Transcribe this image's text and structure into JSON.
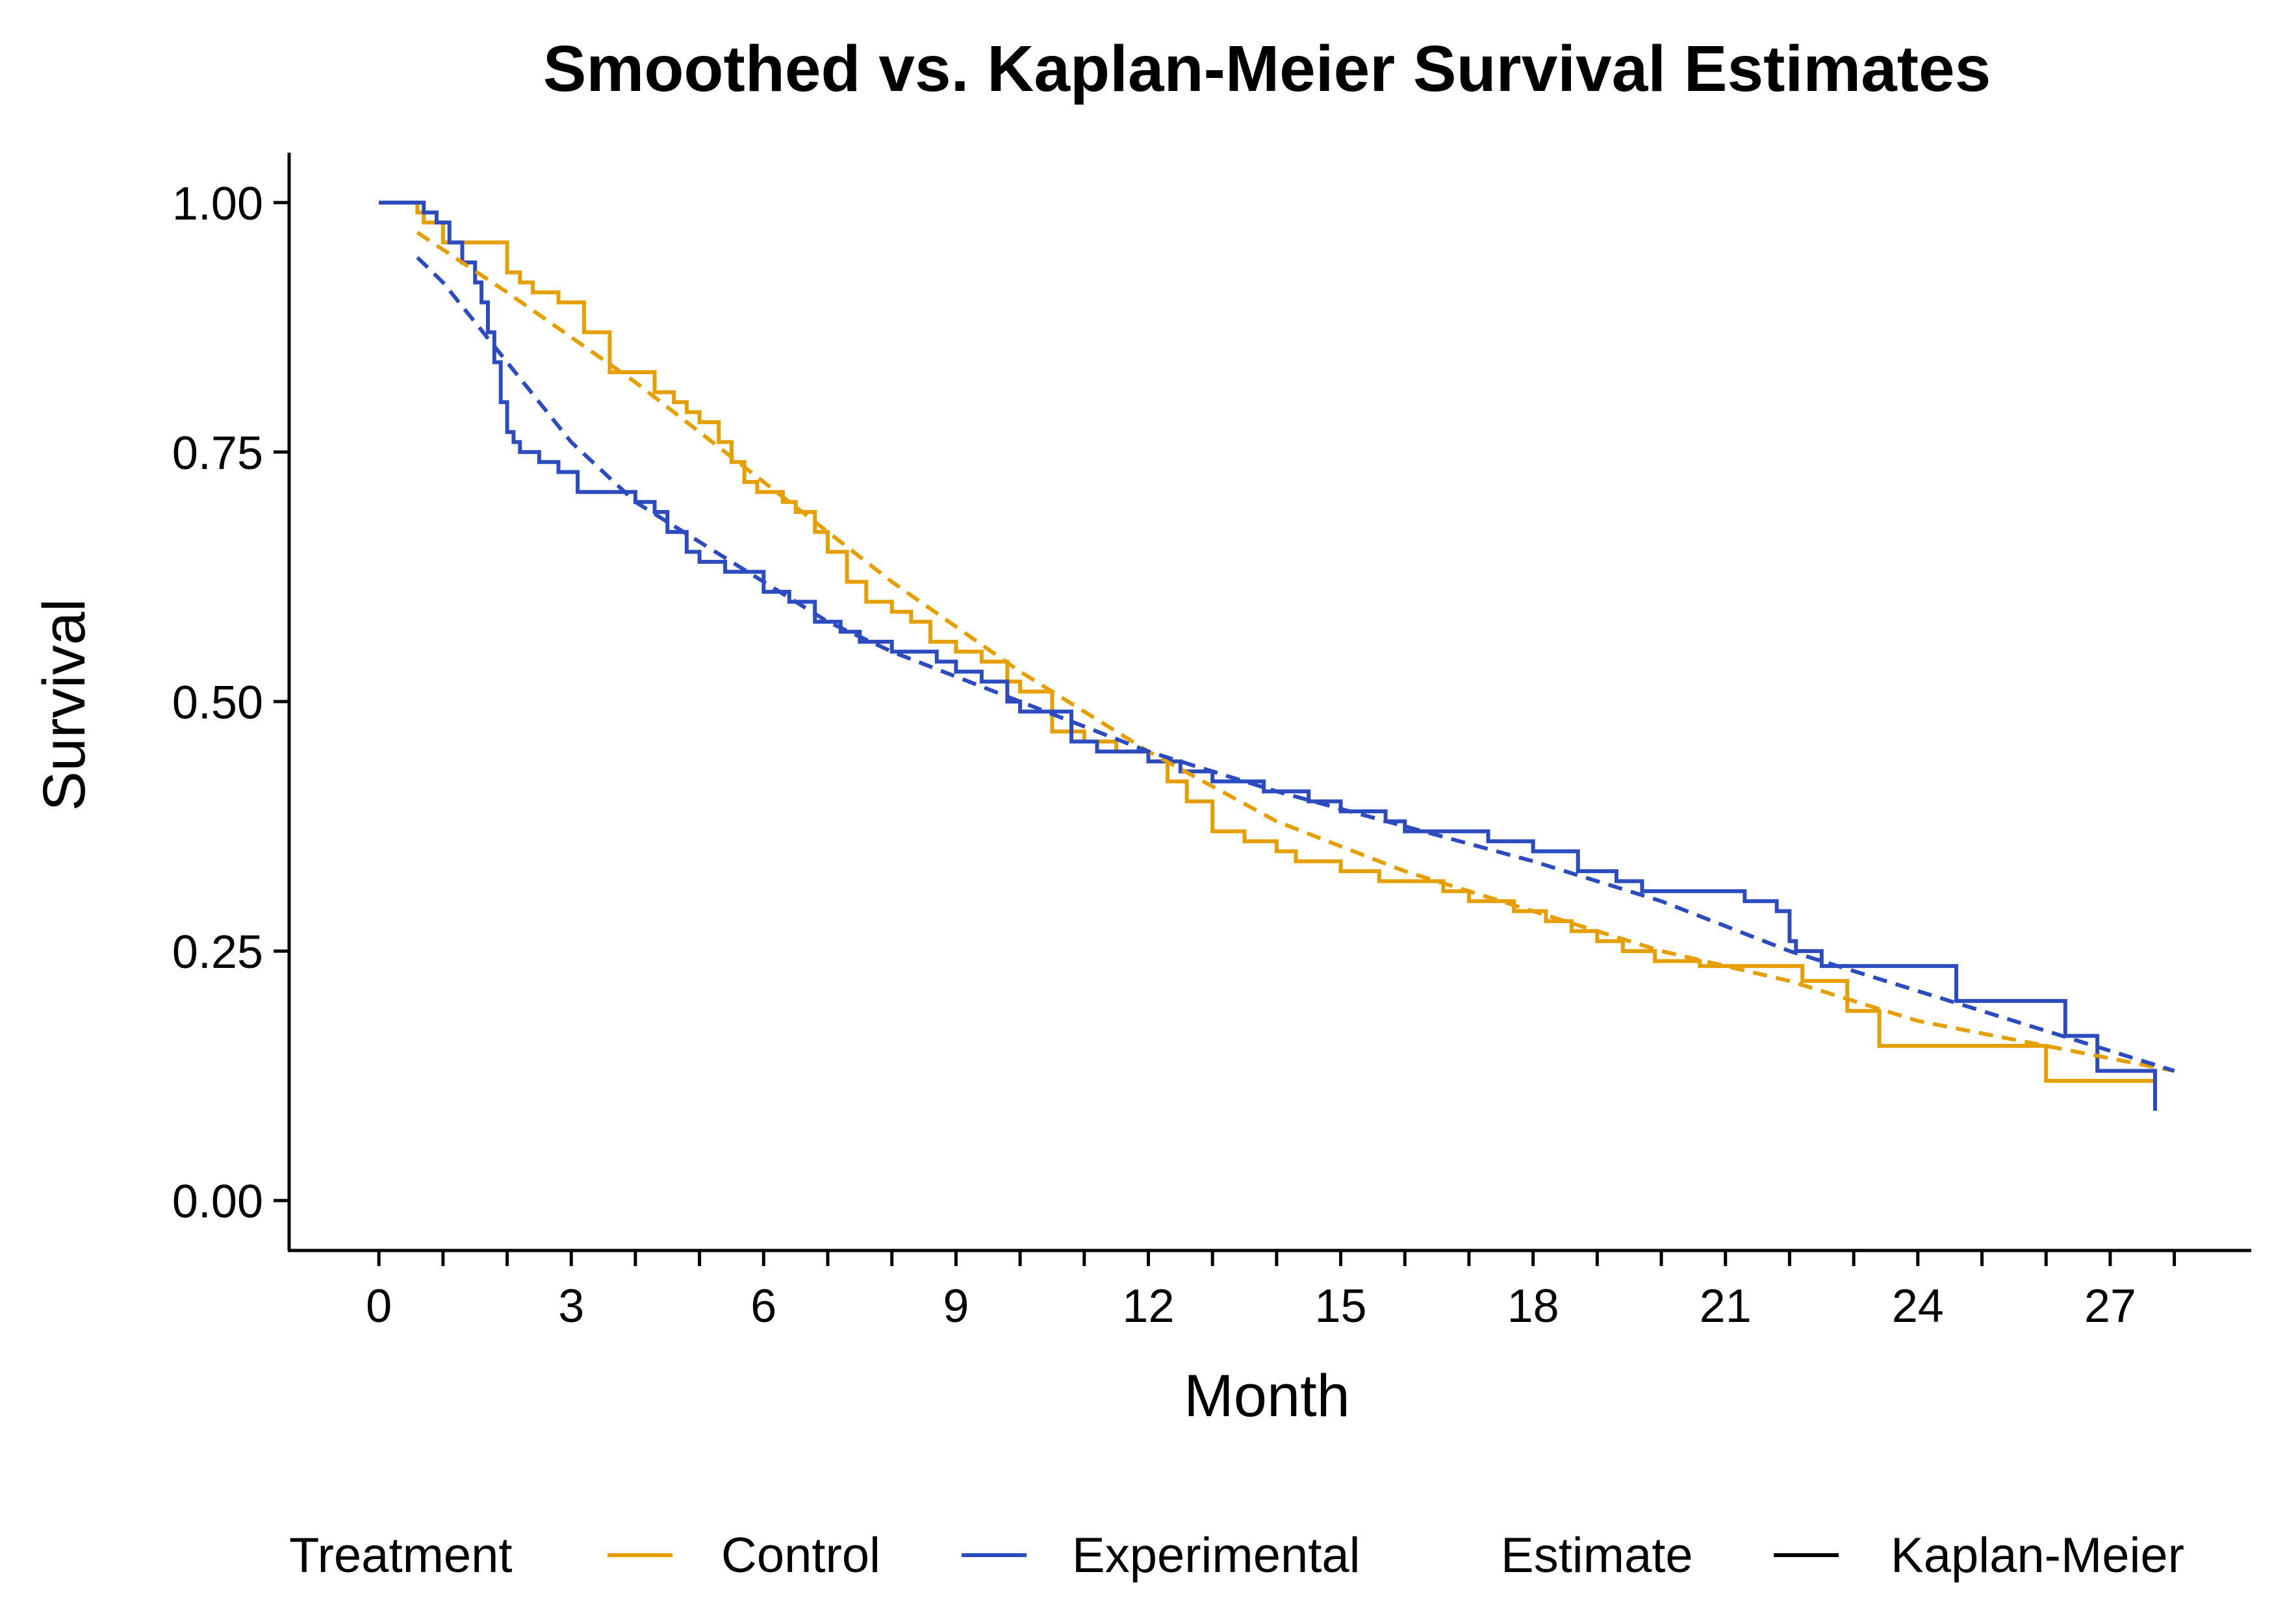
{
  "chart_data": {
    "type": "line",
    "title": "Smoothed vs. Kaplan-Meier Survival Estimates",
    "xlabel": "Month",
    "ylabel": "Survival",
    "xlim": [
      -1.4,
      29.2
    ],
    "ylim": [
      -0.05,
      1.05
    ],
    "x_ticks": [
      0,
      3,
      6,
      9,
      12,
      15,
      18,
      21,
      24,
      27
    ],
    "y_ticks": [
      0.0,
      0.25,
      0.5,
      0.75,
      1.0
    ],
    "y_tick_labels": [
      "0.00",
      "0.25",
      "0.50",
      "0.75",
      "1.00"
    ],
    "legend": {
      "position": "bottom",
      "treatment_title": "Treatment",
      "estimate_title": "Estimate",
      "treatment_items": [
        "Control",
        "Experimental"
      ],
      "estimate_items": [
        "Kaplan-Meier"
      ]
    },
    "colors": {
      "Control": "#E69F00",
      "Experimental": "#2B4BBF",
      "axis": "#000000"
    },
    "series": [
      {
        "name": "Control",
        "estimate": "Kaplan-Meier",
        "style": "step",
        "x": [
          0,
          0.6,
          0.7,
          1.0,
          1.3,
          2.0,
          2.2,
          2.4,
          2.8,
          3.2,
          3.6,
          4.3,
          4.6,
          4.8,
          5.0,
          5.3,
          5.5,
          5.7,
          5.9,
          6.3,
          6.5,
          6.8,
          7.0,
          7.3,
          7.6,
          8.0,
          8.3,
          8.6,
          9.0,
          9.4,
          9.8,
          10.0,
          10.5,
          11.0,
          11.5,
          12.0,
          12.3,
          12.6,
          13.0,
          13.5,
          14.0,
          14.3,
          15.0,
          15.6,
          16.0,
          16.6,
          17.0,
          17.7,
          18.2,
          18.6,
          19.0,
          19.4,
          19.9,
          20.6,
          21.0,
          22.2,
          22.9,
          23.4,
          24.0,
          25.0,
          26.0,
          26.8,
          27.7
        ],
        "y": [
          1.0,
          0.99,
          0.98,
          0.96,
          0.96,
          0.93,
          0.92,
          0.91,
          0.9,
          0.87,
          0.83,
          0.81,
          0.8,
          0.79,
          0.78,
          0.76,
          0.74,
          0.72,
          0.71,
          0.7,
          0.69,
          0.67,
          0.65,
          0.62,
          0.6,
          0.59,
          0.58,
          0.56,
          0.55,
          0.54,
          0.52,
          0.51,
          0.47,
          0.46,
          0.45,
          0.44,
          0.42,
          0.4,
          0.37,
          0.36,
          0.35,
          0.34,
          0.33,
          0.32,
          0.32,
          0.31,
          0.3,
          0.29,
          0.28,
          0.27,
          0.26,
          0.25,
          0.24,
          0.235,
          0.235,
          0.22,
          0.19,
          0.155,
          0.155,
          0.155,
          0.12,
          0.12,
          0.12
        ]
      },
      {
        "name": "Experimental",
        "estimate": "Kaplan-Meier",
        "style": "step",
        "x": [
          0,
          0.7,
          0.9,
          1.1,
          1.3,
          1.5,
          1.6,
          1.7,
          1.8,
          1.9,
          2.0,
          2.1,
          2.2,
          2.5,
          2.8,
          3.1,
          3.3,
          4.0,
          4.3,
          4.5,
          4.8,
          5.0,
          5.4,
          5.6,
          6.0,
          6.4,
          6.8,
          7.2,
          7.5,
          8.0,
          8.3,
          8.7,
          9.0,
          9.4,
          9.8,
          10.0,
          10.8,
          11.2,
          12.0,
          12.5,
          13.0,
          13.8,
          14.5,
          15.0,
          15.7,
          16.0,
          16.4,
          17.3,
          18.0,
          18.7,
          19.3,
          19.7,
          20.4,
          21.3,
          21.8,
          22.0,
          22.1,
          22.5,
          24.6,
          26.3,
          26.8,
          27.7
        ],
        "y": [
          1.0,
          0.99,
          0.98,
          0.96,
          0.94,
          0.92,
          0.9,
          0.87,
          0.84,
          0.8,
          0.77,
          0.76,
          0.75,
          0.74,
          0.73,
          0.71,
          0.71,
          0.7,
          0.69,
          0.67,
          0.65,
          0.64,
          0.63,
          0.63,
          0.61,
          0.6,
          0.58,
          0.57,
          0.56,
          0.55,
          0.55,
          0.54,
          0.53,
          0.52,
          0.5,
          0.49,
          0.46,
          0.45,
          0.44,
          0.43,
          0.42,
          0.41,
          0.4,
          0.39,
          0.38,
          0.37,
          0.37,
          0.36,
          0.35,
          0.33,
          0.32,
          0.31,
          0.31,
          0.3,
          0.29,
          0.26,
          0.25,
          0.235,
          0.2,
          0.165,
          0.13,
          0.09
        ]
      },
      {
        "name": "Control",
        "estimate": "Smoothed",
        "style": "dashed",
        "x": [
          0.6,
          2,
          4,
          6,
          8,
          10,
          12,
          14,
          16,
          18,
          20,
          22,
          24,
          26,
          28
        ],
        "y": [
          0.97,
          0.91,
          0.82,
          0.72,
          0.62,
          0.53,
          0.45,
          0.38,
          0.33,
          0.29,
          0.25,
          0.22,
          0.18,
          0.155,
          0.13
        ]
      },
      {
        "name": "Experimental",
        "estimate": "Smoothed",
        "style": "dashed",
        "x": [
          0.6,
          1,
          2,
          3,
          4,
          5,
          6,
          7,
          8,
          10,
          12,
          14,
          16,
          18,
          20,
          22,
          24,
          26,
          28
        ],
        "y": [
          0.945,
          0.92,
          0.84,
          0.76,
          0.7,
          0.66,
          0.62,
          0.58,
          0.55,
          0.5,
          0.45,
          0.41,
          0.375,
          0.34,
          0.3,
          0.25,
          0.21,
          0.17,
          0.13
        ]
      }
    ]
  }
}
